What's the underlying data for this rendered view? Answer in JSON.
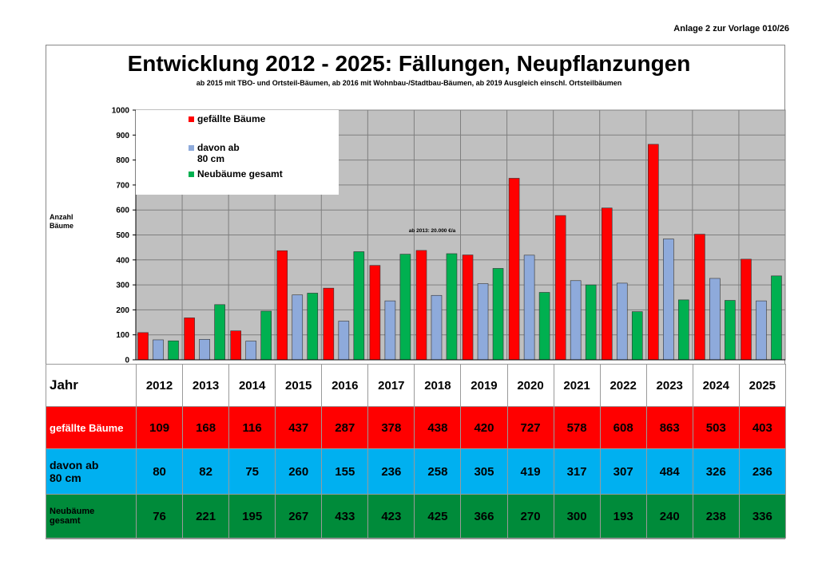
{
  "header_note": "Anlage 2 zur Vorlage 010/26",
  "chart_data": {
    "type": "bar",
    "title": "Entwicklung 2012 - 2025: Fällungen, Neupflanzungen",
    "subtitle": "ab 2015 mit TBO- und Ortsteil-Bäumen, ab 2016 mit Wohnbau-/Stadtbau-Bäumen, ab 2019 Ausgleich einschl. Ortsteilbäumen",
    "ylabel": "Anzahl Bäume",
    "xlabel": "",
    "ylim": [
      0,
      1000
    ],
    "yticks": [
      "0",
      "100",
      "200",
      "300",
      "400",
      "500",
      "600",
      "700",
      "800",
      "900",
      "1000"
    ],
    "grid": true,
    "legend_position": "top-left",
    "annotation": "ab 2013: 20.000 €/a",
    "categories": [
      "2012",
      "2013",
      "2014",
      "2015",
      "2016",
      "2017",
      "2018",
      "2019",
      "2020",
      "2021",
      "2022",
      "2023",
      "2024",
      "2025"
    ],
    "series": [
      {
        "name": "gefällte Bäume",
        "color": "#ff0000",
        "values": [
          109,
          168,
          116,
          437,
          287,
          378,
          438,
          420,
          727,
          578,
          608,
          863,
          503,
          403
        ]
      },
      {
        "name": "davon ab 80 cm",
        "color": "#8eaadb",
        "values": [
          80,
          82,
          75,
          260,
          155,
          236,
          258,
          305,
          419,
          317,
          307,
          484,
          326,
          236
        ]
      },
      {
        "name": "Neubäume gesamt",
        "color": "#00b050",
        "values": [
          76,
          221,
          195,
          267,
          433,
          423,
          425,
          366,
          270,
          300,
          193,
          240,
          238,
          336
        ]
      }
    ]
  },
  "legend_labels": [
    "gefällte Bäume",
    "davon ab",
    "80 cm",
    "Neubäume gesamt"
  ],
  "table": {
    "year_label": "Jahr",
    "row_labels": {
      "fell": "gefällte Bäume",
      "big_1": "davon ab",
      "big_2": "80 cm",
      "new_1": "Neubäume",
      "new_2": "gesamt"
    }
  }
}
